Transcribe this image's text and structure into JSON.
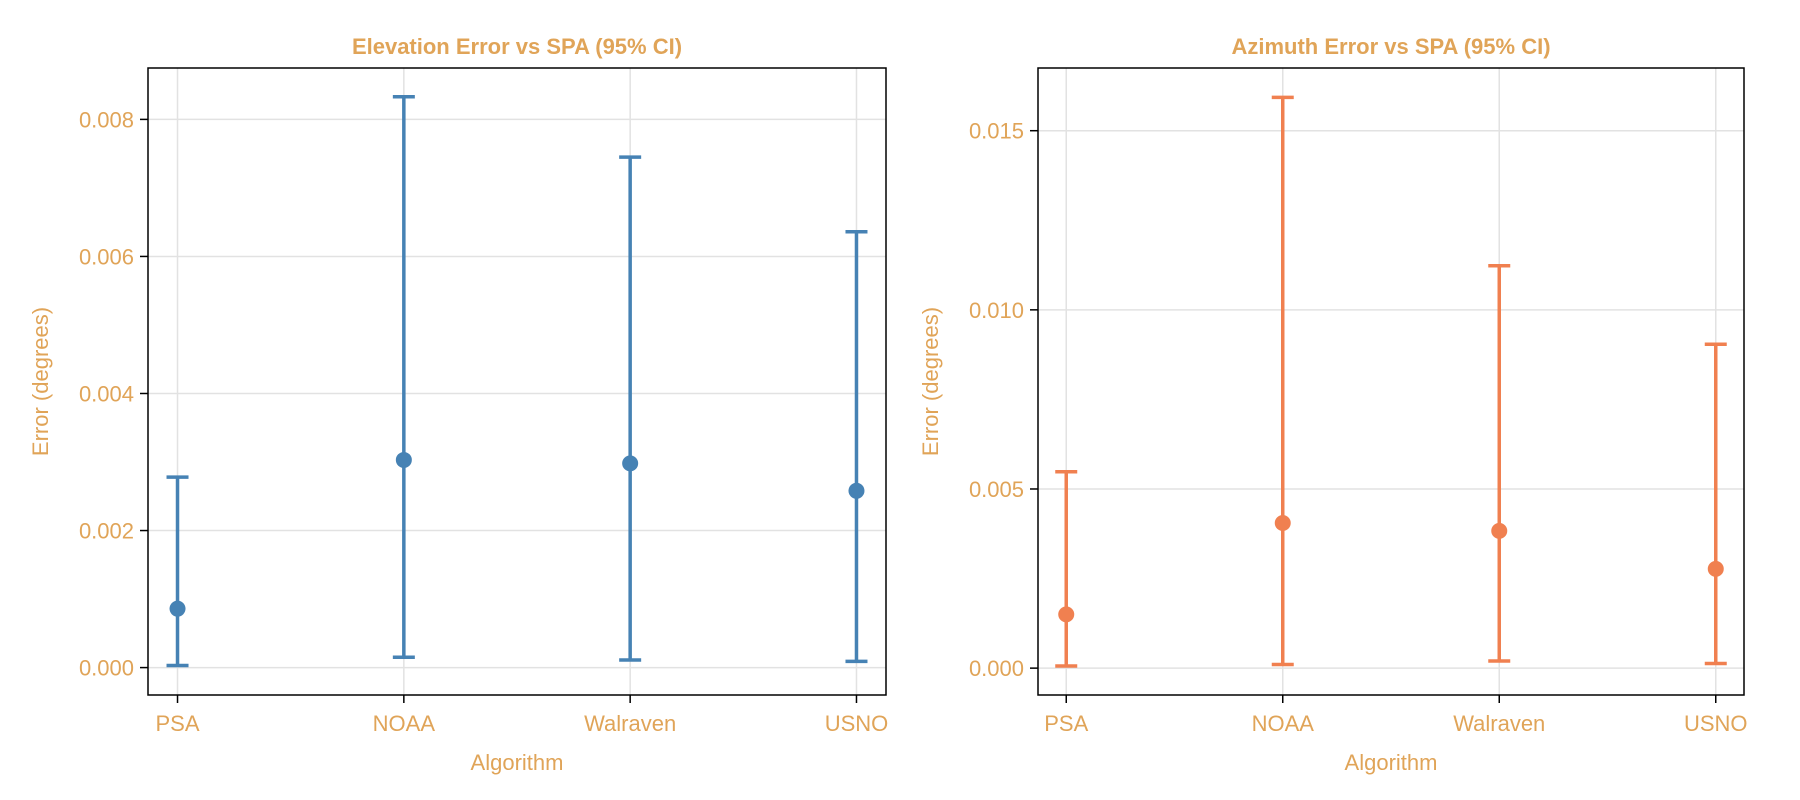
{
  "text_color": "#E0A458",
  "chart_data": [
    {
      "type": "errorbar",
      "title": "Elevation Error vs SPA (95% CI)",
      "xlabel": "Algorithm",
      "ylabel": "Error (degrees)",
      "categories": [
        "PSA",
        "NOAA",
        "Walraven",
        "USNO"
      ],
      "values": [
        0.00086,
        0.00303,
        0.00298,
        0.00258
      ],
      "ci_low": [
        3e-05,
        0.00015,
        0.00011,
        9e-05
      ],
      "ci_high": [
        0.00278,
        0.00833,
        0.00745,
        0.00636
      ],
      "ylim": [
        -0.0004,
        0.00875
      ],
      "yticks": [
        0.0,
        0.002,
        0.004,
        0.006,
        0.008
      ],
      "ytick_labels": [
        "0.000",
        "0.002",
        "0.004",
        "0.006",
        "0.008"
      ],
      "color": "#4682B4",
      "grid": true
    },
    {
      "type": "errorbar",
      "title": "Azimuth Error vs SPA (95% CI)",
      "xlabel": "Algorithm",
      "ylabel": "Error (degrees)",
      "categories": [
        "PSA",
        "NOAA",
        "Walraven",
        "USNO"
      ],
      "values": [
        0.0015,
        0.00405,
        0.00383,
        0.00277
      ],
      "ci_low": [
        6e-05,
        0.0001,
        0.0002,
        0.00013
      ],
      "ci_high": [
        0.00548,
        0.01593,
        0.01123,
        0.00904
      ],
      "ylim": [
        -0.00075,
        0.01675
      ],
      "yticks": [
        0.0,
        0.005,
        0.01,
        0.015
      ],
      "ytick_labels": [
        "0.000",
        "0.005",
        "0.010",
        "0.015"
      ],
      "color": "#F08050",
      "grid": true
    }
  ]
}
